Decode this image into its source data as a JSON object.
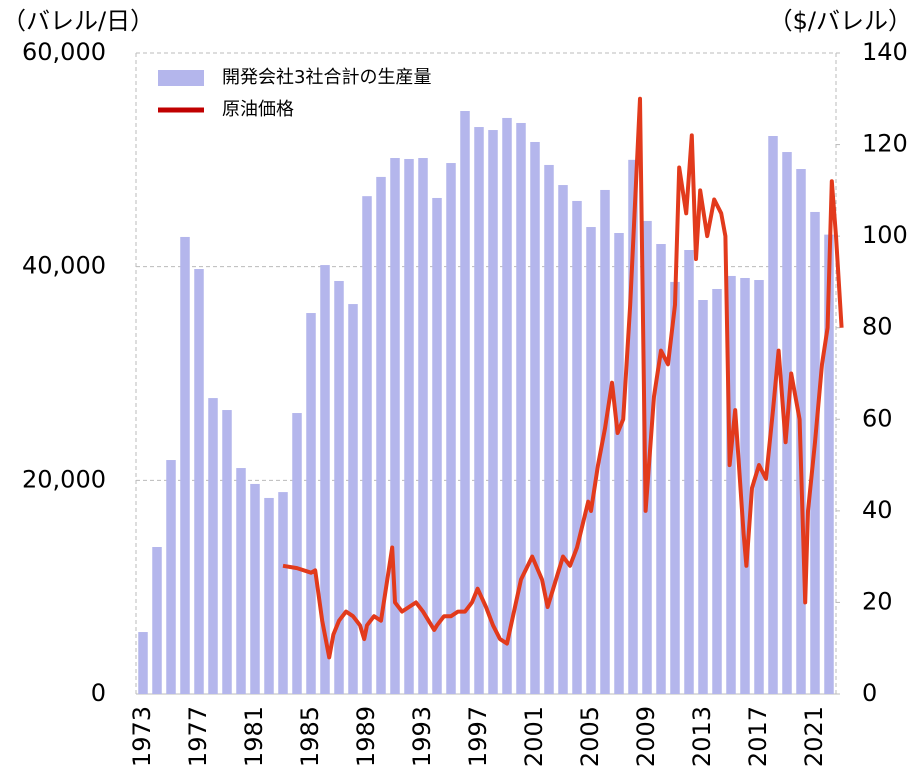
{
  "chart_data": {
    "type": "bar",
    "y_label": "（バレル/日）",
    "y2_label": "（$/バレル）",
    "categories": [
      "1973",
      null,
      null,
      null,
      "1977",
      null,
      null,
      null,
      "1981",
      null,
      null,
      null,
      "1985",
      null,
      null,
      null,
      "1989",
      null,
      null,
      null,
      "1993",
      null,
      null,
      null,
      "1997",
      null,
      null,
      null,
      "2001",
      null,
      null,
      null,
      "2005",
      null,
      null,
      null,
      "2009",
      null,
      null,
      null,
      "2013",
      null,
      null,
      null,
      "2017",
      null,
      null,
      null,
      "2021",
      null
    ],
    "xlim": [
      1972.5,
      2022.5
    ],
    "ylim": [
      0,
      60000
    ],
    "yticks": [
      0,
      {
        "value": 20000,
        "label": "20,000"
      },
      {
        "value": 40000,
        "label": "40,000"
      },
      {
        "value": 60000,
        "label": "60,000"
      }
    ],
    "y2lim": [
      0,
      140
    ],
    "y2ticks": [
      0,
      20,
      40,
      60,
      80,
      100,
      120,
      140
    ],
    "grid": true,
    "legend": "upper left",
    "series": [
      {
        "name": "開発会社3社合計の生産量",
        "type": "bar",
        "color": "#b4b6ec",
        "values": [
          5800,
          13760,
          21900,
          42780,
          39780,
          27700,
          26580,
          21150,
          19660,
          18350,
          18900,
          26300,
          35660,
          40150,
          38660,
          36500,
          46600,
          48400,
          50170,
          50080,
          50170,
          46430,
          49700,
          54570,
          53070,
          52790,
          53920,
          53450,
          51670,
          49520,
          47640,
          46150,
          43710,
          47180,
          43150,
          50000,
          44280,
          42120,
          38570,
          41560,
          36880,
          37910,
          39130,
          38940,
          38750,
          52230,
          50730,
          49140,
          45120,
          43000
        ]
      },
      {
        "name": "原油価格",
        "type": "line",
        "axis": "y2",
        "color": "#e23a1c",
        "legend_color": "#c00000",
        "x": [
          1983.0,
          1984.0,
          1985.0,
          1985.3,
          1985.8,
          1986.3,
          1986.6,
          1987.0,
          1987.5,
          1988.0,
          1988.5,
          1988.8,
          1989.0,
          1989.5,
          1990.0,
          1990.8,
          1991.0,
          1991.5,
          1992.0,
          1992.5,
          1993.0,
          1993.8,
          1994.0,
          1994.5,
          1995.0,
          1995.5,
          1996.0,
          1996.5,
          1996.9,
          1997.5,
          1998.0,
          1998.5,
          1999.0,
          1999.5,
          2000.0,
          2000.8,
          2001.5,
          2001.9,
          2002.5,
          2003.0,
          2003.5,
          2004.0,
          2004.8,
          2005.0,
          2005.5,
          2006.0,
          2006.5,
          2006.9,
          2007.3,
          2007.8,
          2008.5,
          2008.9,
          2009.5,
          2010.0,
          2010.5,
          2011.0,
          2011.3,
          2011.8,
          2012.2,
          2012.5,
          2012.8,
          2013.3,
          2013.8,
          2014.3,
          2014.6,
          2014.9,
          2015.3,
          2015.9,
          2016.1,
          2016.5,
          2017.0,
          2017.5,
          2018.0,
          2018.4,
          2018.9,
          2019.3,
          2019.9,
          2020.3,
          2020.5,
          2021.0,
          2021.5,
          2021.9,
          2022.2,
          2022.5,
          2022.9
        ],
        "values": [
          28,
          27.5,
          26.5,
          27,
          16,
          8,
          13,
          16,
          18,
          17,
          15,
          12,
          15,
          17,
          16,
          32,
          20,
          18,
          19,
          20,
          18,
          14,
          15,
          17,
          17,
          18,
          18,
          20,
          23,
          19,
          15,
          12,
          11,
          18,
          25,
          30,
          25,
          19,
          25,
          30,
          28,
          32,
          42,
          40,
          50,
          58,
          68,
          57,
          60,
          85,
          130,
          40,
          65,
          75,
          72,
          85,
          115,
          105,
          122,
          95,
          110,
          100,
          108,
          105,
          100,
          50,
          62,
          35,
          28,
          45,
          50,
          47,
          62,
          75,
          55,
          70,
          60,
          20,
          40,
          55,
          72,
          80,
          112,
          100,
          80
        ]
      }
    ]
  }
}
